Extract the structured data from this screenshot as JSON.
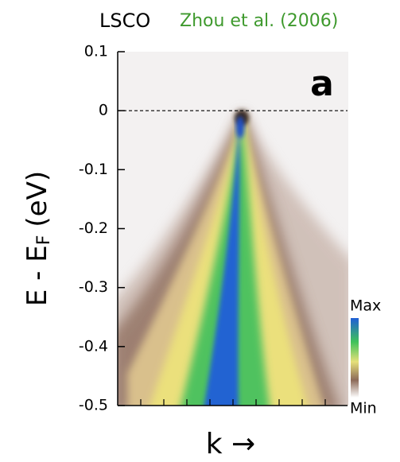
{
  "chart_data": {
    "type": "heatmap",
    "title": "LSCO",
    "subtitle": "Zhou et al. (2006)",
    "panel_label": "a",
    "ylabel": [
      "E - E",
      "F",
      "(eV)"
    ],
    "xlabel": "k →",
    "ylim": [
      -0.5,
      0.1
    ],
    "yticks": [
      0.1,
      0,
      -0.1,
      -0.2,
      -0.3,
      -0.4,
      -0.5
    ],
    "reference_line": 0,
    "colorbar_labels": [
      "Max",
      "Min"
    ],
    "subtitle_color": "#3f9a2e"
  }
}
